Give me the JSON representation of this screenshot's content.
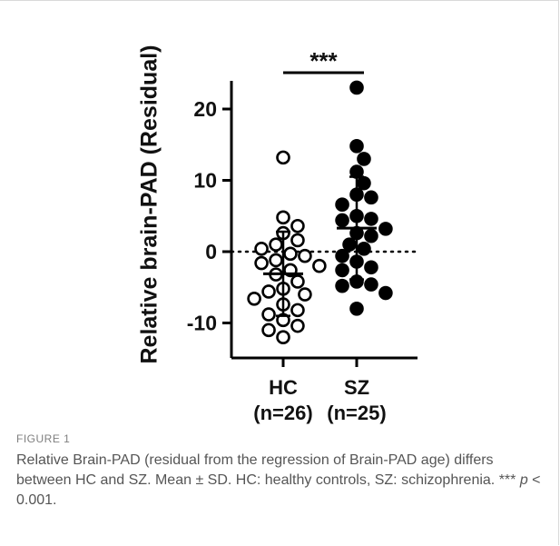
{
  "chart_data": {
    "type": "scatter",
    "title": "",
    "ylabel": "Relative brain-PAD (Residual)",
    "xlabel": "",
    "ylim": [
      -15,
      25
    ],
    "y_ticks": [
      20,
      10,
      0,
      -10
    ],
    "tick_labels": [
      "20",
      "10",
      "0",
      "-10"
    ],
    "categories": [
      "HC\n(n=26)",
      "SZ\n(n=25)"
    ],
    "category_lines": [
      [
        "HC",
        "(n=26)"
      ],
      [
        "SZ",
        "(n=25)"
      ]
    ],
    "zero_line": "dotted",
    "significance": "***",
    "series": [
      {
        "name": "HC",
        "marker": "open circle",
        "values": [
          13.2,
          4.8,
          3.6,
          2.6,
          1.6,
          1.0,
          0.4,
          -0.3,
          -0.6,
          -1.2,
          -1.6,
          -2.0,
          -2.6,
          -3.2,
          -4.2,
          -5.2,
          -5.6,
          -6.0,
          -6.6,
          -7.4,
          -8.2,
          -8.8,
          -9.6,
          -10.4,
          -11.0,
          -12.0
        ],
        "mean": -3.1,
        "sd": 5.9
      },
      {
        "name": "SZ",
        "marker": "filled circle",
        "values": [
          23.0,
          14.8,
          13.0,
          11.2,
          9.6,
          8.0,
          7.6,
          6.6,
          5.0,
          4.6,
          4.4,
          3.2,
          2.6,
          2.2,
          1.0,
          0.4,
          -0.6,
          -1.4,
          -2.2,
          -2.6,
          -4.2,
          -4.6,
          -4.8,
          -5.8,
          -8.0
        ],
        "mean": 3.3,
        "sd": 7.2
      }
    ],
    "colors": {
      "marker": "#000000",
      "axis": "#000000",
      "background": "#ffffff"
    }
  },
  "caption": {
    "label": "FIGURE 1",
    "text": "Relative Brain-PAD (residual from the regression of Brain-PAD age) differs between HC and SZ. Mean ± SD. HC: healthy controls, SZ: schizophrenia. *** p < 0.001."
  }
}
